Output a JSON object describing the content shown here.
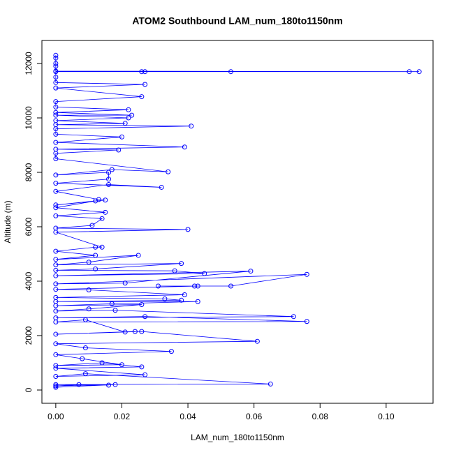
{
  "chart_data": {
    "type": "line",
    "markers": true,
    "title": "ATOM2 Southbound LAM_num_180to1150nm",
    "xlabel": "LAM_num_180to1150nm",
    "ylabel": "Altitude (m)",
    "color": "#0000ff",
    "grid": false,
    "xlim": [
      -0.0042,
      0.1142
    ],
    "ylim": [
      -487,
      12846
    ],
    "xticks": [
      {
        "value": 0,
        "label": "0.00"
      },
      {
        "value": 0.02,
        "label": "0.02"
      },
      {
        "value": 0.04,
        "label": "0.04"
      },
      {
        "value": 0.06,
        "label": "0.06"
      },
      {
        "value": 0.08,
        "label": "0.08"
      },
      {
        "value": 0.1,
        "label": "0.10"
      }
    ],
    "yticks": [
      0,
      2000,
      4000,
      6000,
      8000,
      10000,
      12000
    ],
    "x": [
      0,
      0,
      0,
      0,
      0,
      0.11,
      0.107,
      0.053,
      0.027,
      0.026,
      0,
      0,
      0,
      0.027,
      0,
      0.026,
      0,
      0,
      0.022,
      0,
      0.023,
      0,
      0.022,
      0,
      0.021,
      0,
      0.041,
      0,
      0,
      0.02,
      0,
      0.039,
      0,
      0.019,
      0,
      0,
      0.034,
      0.017,
      0,
      0.016,
      0.016,
      0,
      0.032,
      0.016,
      0,
      0.013,
      0.015,
      0,
      0.012,
      0,
      0.015,
      0,
      0.014,
      0.011,
      0,
      0.04,
      0,
      0.014,
      0.012,
      0,
      0.012,
      0,
      0.025,
      0.01,
      0,
      0.038,
      0.012,
      0,
      0.036,
      0.045,
      0,
      0.059,
      0.021,
      0,
      0.076,
      0.053,
      0.031,
      0.042,
      0.043,
      0,
      0.01,
      0.039,
      0,
      0.033,
      0.038,
      0,
      0.043,
      0.017,
      0,
      0.026,
      0.01,
      0,
      0.018,
      0.072,
      0,
      0.027,
      0.076,
      0,
      0.009,
      0.021,
      0.024,
      0,
      0.026,
      0.061,
      0,
      0.009,
      0.035,
      0,
      0.008,
      0.02,
      0,
      0.014,
      0.026,
      0,
      0.027,
      0,
      0.009,
      0.065,
      0,
      0.016,
      0.007,
      0,
      0.018,
      0
    ],
    "values": [
      12300,
      12200,
      12000,
      11900,
      11720,
      11700,
      11700,
      11700,
      11700,
      11700,
      11700,
      11500,
      11300,
      11230,
      11100,
      10780,
      10600,
      10400,
      10300,
      10200,
      10100,
      10100,
      10000,
      9900,
      9800,
      9750,
      9700,
      9600,
      9400,
      9300,
      9100,
      8930,
      8850,
      8820,
      8700,
      8500,
      8020,
      8100,
      7900,
      8000,
      7750,
      7600,
      7450,
      7550,
      7300,
      7000,
      6980,
      6800,
      6950,
      6700,
      6530,
      6400,
      6300,
      6050,
      5950,
      5900,
      5800,
      5250,
      5250,
      5100,
      4950,
      4800,
      4950,
      4700,
      4600,
      4650,
      4450,
      4400,
      4380,
      4280,
      4200,
      4370,
      3930,
      3900,
      4250,
      3820,
      3820,
      3820,
      3820,
      3700,
      3680,
      3500,
      3400,
      3350,
      3300,
      3250,
      3250,
      3170,
      3100,
      3140,
      2980,
      2900,
      2930,
      2700,
      2650,
      2700,
      2520,
      2500,
      2580,
      2130,
      2150,
      2050,
      2150,
      1790,
      1700,
      1550,
      1420,
      1300,
      1150,
      930,
      900,
      1000,
      850,
      800,
      560,
      500,
      600,
      220,
      200,
      180,
      200,
      150,
      200,
      100
    ]
  }
}
